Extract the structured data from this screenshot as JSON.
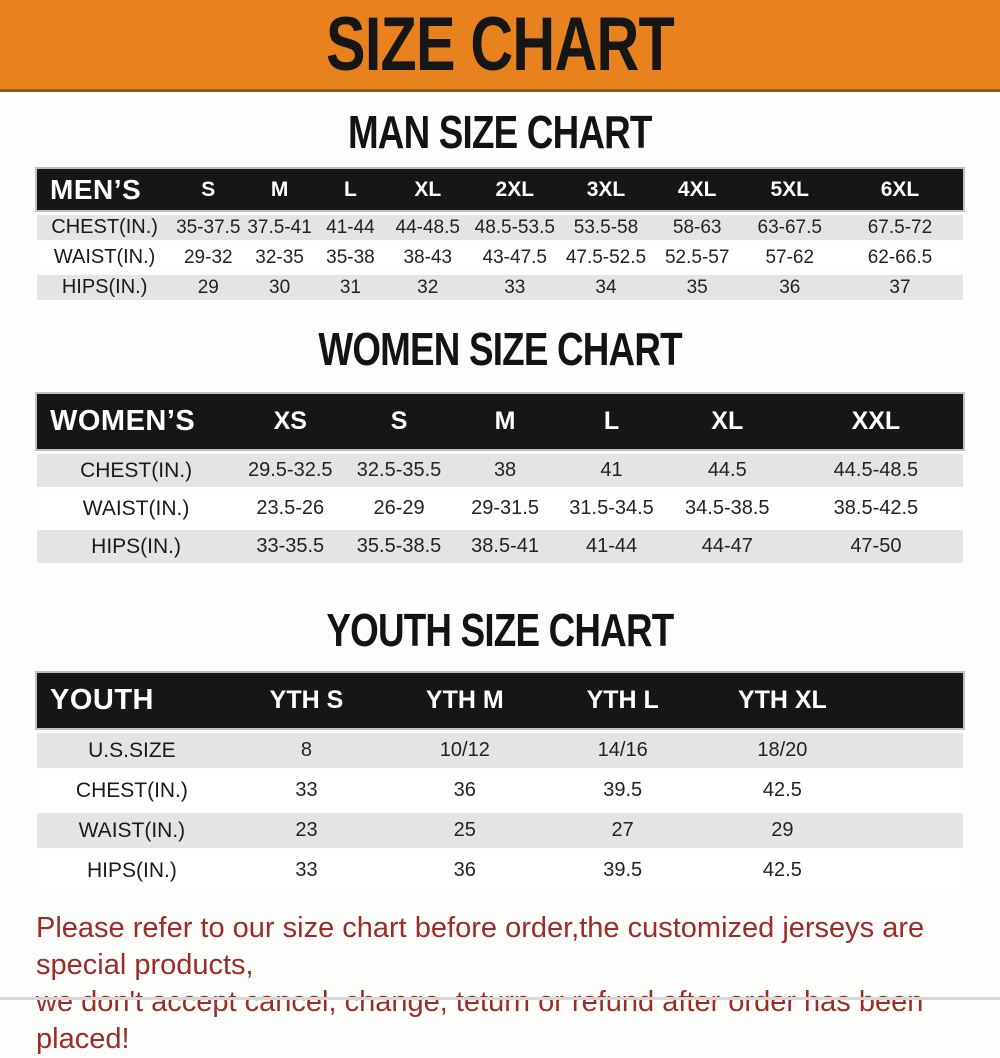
{
  "banner": {
    "title": "SIZE CHART",
    "bg_color": "#e8821e",
    "text_color": "#161616"
  },
  "colors": {
    "table_header_bg": "#161616",
    "row_stripe_gray": "#e4e4e6",
    "disclaimer_red": "#9d2c26"
  },
  "sections": [
    {
      "heading": "MAN SIZE CHART",
      "table": {
        "header_label": "MEN’S",
        "columns": [
          "S",
          "M",
          "L",
          "XL",
          "2XL",
          "3XL",
          "4XL",
          "5XL",
          "6XL"
        ],
        "rows": [
          {
            "label": "CHEST(IN.)",
            "values": [
              "35-37.5",
              "37.5-41",
              "41-44",
              "44-48.5",
              "48.5-53.5",
              "53.5-58",
              "58-63",
              "63-67.5",
              "67.5-72"
            ]
          },
          {
            "label": "WAIST(IN.)",
            "values": [
              "29-32",
              "32-35",
              "35-38",
              "38-43",
              "43-47.5",
              "47.5-52.5",
              "52.5-57",
              "57-62",
              "62-66.5"
            ]
          },
          {
            "label": "HIPS(IN.)",
            "values": [
              "29",
              "30",
              "31",
              "32",
              "33",
              "34",
              "35",
              "36",
              "37"
            ]
          }
        ]
      }
    },
    {
      "heading": "WOMEN SIZE CHART",
      "table": {
        "header_label": "WOMEN’S",
        "columns": [
          "XS",
          "S",
          "M",
          "L",
          "XL",
          "XXL"
        ],
        "rows": [
          {
            "label": "CHEST(IN.)",
            "values": [
              "29.5-32.5",
              "32.5-35.5",
              "38",
              "41",
              "44.5",
              "44.5-48.5"
            ]
          },
          {
            "label": "WAIST(IN.)",
            "values": [
              "23.5-26",
              "26-29",
              "29-31.5",
              "31.5-34.5",
              "34.5-38.5",
              "38.5-42.5"
            ]
          },
          {
            "label": "HIPS(IN.)",
            "values": [
              "33-35.5",
              "35.5-38.5",
              "38.5-41",
              "41-44",
              "44-47",
              "47-50"
            ]
          }
        ]
      }
    },
    {
      "heading": "YOUTH SIZE CHART",
      "table": {
        "header_label": "YOUTH",
        "columns": [
          "YTH S",
          "YTH M",
          "YTH L",
          "YTH XL"
        ],
        "rows": [
          {
            "label": "U.S.SIZE",
            "values": [
              "8",
              "10/12",
              "14/16",
              "18/20"
            ]
          },
          {
            "label": "CHEST(IN.)",
            "values": [
              "33",
              "36",
              "39.5",
              "42.5"
            ]
          },
          {
            "label": "WAIST(IN.)",
            "values": [
              "23",
              "25",
              "27",
              "29"
            ]
          },
          {
            "label": "HIPS(IN.)",
            "values": [
              "33",
              "36",
              "39.5",
              "42.5"
            ]
          }
        ]
      }
    }
  ],
  "footer": {
    "lines": [
      "Please refer to our size chart before order,the customized jerseys are special products,",
      "we don't accept cancel, change, teturn or refund after order has been placed!"
    ]
  }
}
